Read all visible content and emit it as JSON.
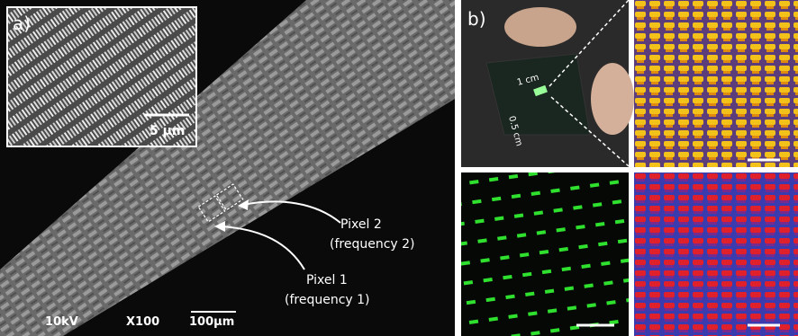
{
  "panel_a": {
    "label": "a)",
    "inset_scale": "5 µm",
    "annotations": [
      {
        "title": "Pixel 2",
        "subtitle": "(frequency 2)"
      },
      {
        "title": "Pixel 1",
        "subtitle": "(frequency 1)"
      }
    ],
    "footer": {
      "voltage": "10kV",
      "magnification": "X100",
      "scale": "100µm"
    }
  },
  "panel_b": {
    "label": "b)",
    "dimensions": [
      "1 cm",
      "0.5 cm"
    ]
  }
}
